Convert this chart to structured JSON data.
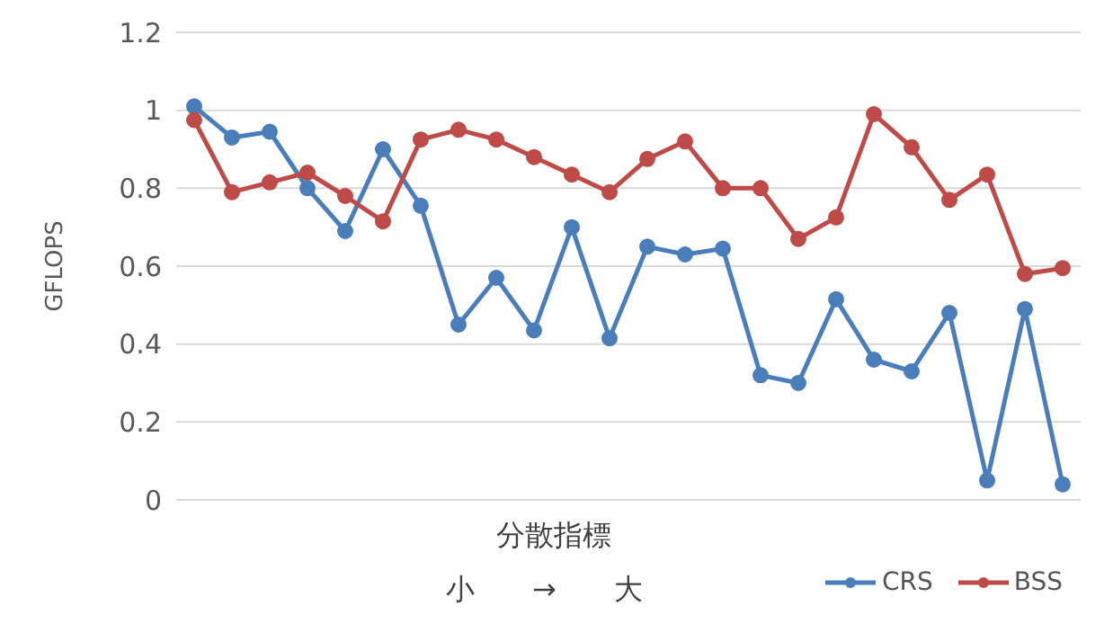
{
  "chart_data": {
    "type": "line",
    "xlabel": "分散指標",
    "ylabel": "GFLOPS",
    "annotations": [
      "小　　→　　大"
    ],
    "categories": [
      null,
      null,
      null,
      null,
      null,
      null,
      null,
      null,
      null,
      null,
      null,
      null,
      null,
      null,
      null,
      null,
      null,
      null,
      null,
      null,
      null,
      null,
      null,
      null
    ],
    "series": [
      {
        "name": "CRS",
        "color": "#4a7ebb",
        "values": [
          1.01,
          0.93,
          0.945,
          0.8,
          0.69,
          0.9,
          0.755,
          0.45,
          0.57,
          0.435,
          0.7,
          0.415,
          0.65,
          0.63,
          0.645,
          0.32,
          0.3,
          0.515,
          0.36,
          0.33,
          0.48,
          0.05,
          0.49,
          0.04
        ]
      },
      {
        "name": "BSS",
        "color": "#be4b48",
        "values": [
          0.975,
          0.79,
          0.815,
          0.84,
          0.78,
          0.715,
          0.925,
          0.95,
          0.925,
          0.88,
          0.835,
          0.79,
          0.875,
          0.92,
          0.8,
          0.8,
          0.67,
          0.725,
          0.99,
          0.905,
          0.77,
          0.835,
          0.58,
          0.595
        ]
      }
    ],
    "ylim": [
      0,
      1.2
    ],
    "yticks": [
      0,
      0.2,
      0.4,
      0.6,
      0.8,
      1,
      1.2
    ],
    "grid": "y",
    "legend": "bottom right",
    "marker": "circle",
    "line_style": "solid"
  }
}
